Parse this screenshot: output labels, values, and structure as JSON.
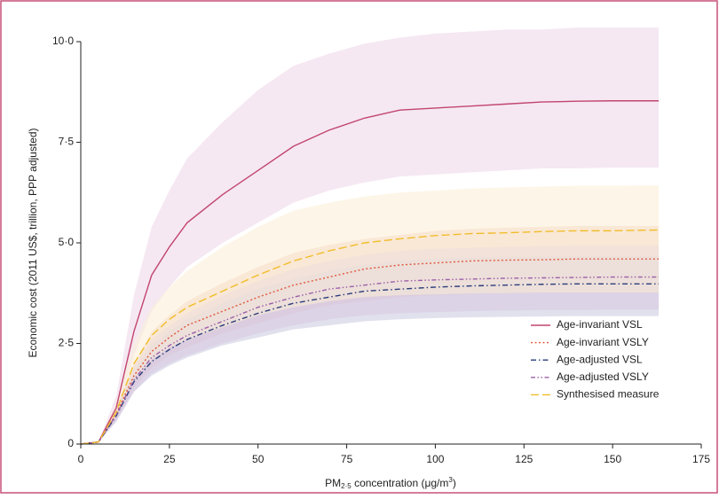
{
  "chart_data": {
    "type": "line",
    "y_label": "Economic cost (2011 US$, trillion, PPP adjusted)",
    "x_label": [
      "PM",
      "2·5",
      " concentration (μg/m",
      "3",
      ")"
    ],
    "x": [
      0,
      5,
      10,
      15,
      20,
      25,
      30,
      40,
      50,
      60,
      70,
      80,
      90,
      100,
      110,
      120,
      130,
      140,
      150,
      163
    ],
    "xlim": [
      0,
      175
    ],
    "xticks": [
      0,
      25,
      50,
      75,
      100,
      125,
      150,
      175
    ],
    "ylim": [
      0,
      10
    ],
    "yticks": [
      0,
      {
        "value": 2.5,
        "label": "2·5"
      },
      {
        "value": 5,
        "label": "5·0"
      },
      {
        "value": 7.5,
        "label": "7·5"
      },
      {
        "value": 10,
        "label": "10·0"
      }
    ],
    "legend": "lower right",
    "series": [
      {
        "name": "Age-invariant VSL",
        "color": "#c2456e",
        "band_color": "#ecd5e8",
        "dash": "solid",
        "values": [
          0,
          0.05,
          0.9,
          2.8,
          4.2,
          4.9,
          5.5,
          6.2,
          6.8,
          7.4,
          7.8,
          8.1,
          8.3,
          8.35,
          8.4,
          8.45,
          8.5,
          8.52,
          8.53,
          8.53
        ],
        "upper": [
          0,
          0.05,
          1.2,
          3.7,
          5.4,
          6.3,
          7.1,
          8.0,
          8.8,
          9.4,
          9.7,
          9.95,
          10.1,
          10.2,
          10.25,
          10.3,
          10.3,
          10.35,
          10.35,
          10.35
        ],
        "lower": [
          0,
          0.05,
          0.7,
          2.2,
          3.3,
          3.9,
          4.4,
          5.0,
          5.5,
          6.0,
          6.3,
          6.5,
          6.65,
          6.7,
          6.75,
          6.8,
          6.85,
          6.85,
          6.87,
          6.87
        ]
      },
      {
        "name": "Age-invariant VSLY",
        "color": "#e0573a",
        "band_color": "#f2c9b8",
        "dash": "dotted",
        "values": [
          0,
          0.05,
          0.75,
          1.7,
          2.3,
          2.65,
          2.95,
          3.3,
          3.65,
          3.95,
          4.15,
          4.35,
          4.45,
          4.5,
          4.55,
          4.57,
          4.58,
          4.6,
          4.6,
          4.6
        ],
        "upper": [
          0,
          0.05,
          0.9,
          2.0,
          2.8,
          3.2,
          3.55,
          4.0,
          4.4,
          4.75,
          4.95,
          5.1,
          5.2,
          5.3,
          5.35,
          5.38,
          5.4,
          5.42,
          5.42,
          5.42
        ],
        "lower": [
          0,
          0.05,
          0.6,
          1.4,
          1.9,
          2.2,
          2.4,
          2.75,
          3.0,
          3.25,
          3.45,
          3.55,
          3.65,
          3.7,
          3.72,
          3.74,
          3.75,
          3.75,
          3.75,
          3.75
        ]
      },
      {
        "name": "Age-adjusted VSL",
        "color": "#2a3d7a",
        "band_color": "#c8c8e0",
        "dash": "dashed",
        "values": [
          0,
          0.05,
          0.7,
          1.55,
          2.05,
          2.35,
          2.6,
          2.95,
          3.25,
          3.5,
          3.65,
          3.8,
          3.85,
          3.9,
          3.93,
          3.95,
          3.97,
          3.98,
          3.98,
          3.98
        ],
        "upper": [
          0,
          0.05,
          0.85,
          1.85,
          2.45,
          2.8,
          3.1,
          3.5,
          3.85,
          4.1,
          4.3,
          4.45,
          4.55,
          4.6,
          4.63,
          4.65,
          4.66,
          4.67,
          4.67,
          4.67
        ],
        "lower": [
          0,
          0.05,
          0.55,
          1.3,
          1.7,
          1.95,
          2.15,
          2.45,
          2.65,
          2.85,
          2.95,
          3.05,
          3.1,
          3.13,
          3.15,
          3.16,
          3.17,
          3.18,
          3.18,
          3.18
        ]
      },
      {
        "name": "Age-adjusted VSLY",
        "color": "#9b5fa8",
        "band_color": "#d8c8e2",
        "dash": "dash-dot",
        "values": [
          0,
          0.05,
          0.72,
          1.6,
          2.15,
          2.45,
          2.7,
          3.05,
          3.4,
          3.65,
          3.85,
          3.95,
          4.05,
          4.08,
          4.1,
          4.12,
          4.13,
          4.14,
          4.15,
          4.15
        ],
        "upper": [
          0,
          0.05,
          0.88,
          1.95,
          2.6,
          2.95,
          3.25,
          3.7,
          4.05,
          4.35,
          4.55,
          4.7,
          4.8,
          4.85,
          4.88,
          4.9,
          4.92,
          4.93,
          4.93,
          4.93
        ],
        "lower": [
          0,
          0.05,
          0.58,
          1.3,
          1.75,
          2.0,
          2.2,
          2.5,
          2.75,
          2.95,
          3.1,
          3.2,
          3.25,
          3.28,
          3.3,
          3.32,
          3.33,
          3.33,
          3.34,
          3.34
        ]
      },
      {
        "name": "Synthesised measure",
        "color": "#f0bd2a",
        "band_color": "#fcefd6",
        "dash": "long-dash",
        "values": [
          0,
          0.05,
          0.8,
          2.0,
          2.7,
          3.1,
          3.4,
          3.8,
          4.2,
          4.55,
          4.8,
          5.0,
          5.1,
          5.18,
          5.23,
          5.25,
          5.28,
          5.3,
          5.3,
          5.32
        ],
        "upper": [
          0,
          0.05,
          1.0,
          2.5,
          3.4,
          3.9,
          4.3,
          4.9,
          5.4,
          5.8,
          6.0,
          6.15,
          6.25,
          6.3,
          6.35,
          6.38,
          6.4,
          6.42,
          6.42,
          6.43
        ],
        "lower": [
          0,
          0.05,
          0.7,
          1.6,
          2.1,
          2.4,
          2.6,
          2.9,
          3.2,
          3.4,
          3.55,
          3.65,
          3.7,
          3.72,
          3.74,
          3.75,
          3.76,
          3.76,
          3.76,
          3.76
        ]
      }
    ]
  }
}
